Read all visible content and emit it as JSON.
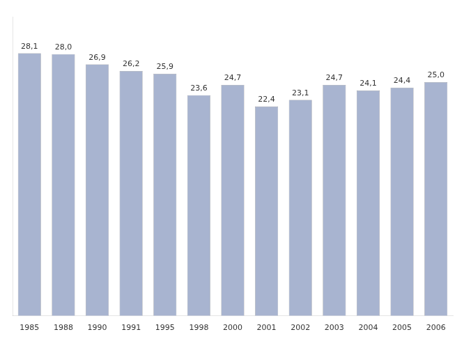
{
  "chart_data": {
    "type": "bar",
    "categories": [
      "1985",
      "1988",
      "1990",
      "1991",
      "1995",
      "1998",
      "2000",
      "2001",
      "2002",
      "2003",
      "2004",
      "2005",
      "2006"
    ],
    "values": [
      28.1,
      28.0,
      26.9,
      26.2,
      25.9,
      23.6,
      24.7,
      22.4,
      23.1,
      24.7,
      24.1,
      24.4,
      25.0
    ],
    "value_labels": [
      "28,1",
      "28,0",
      "26,9",
      "26,2",
      "25,9",
      "23,6",
      "24,7",
      "22,4",
      "23,1",
      "24,7",
      "24,1",
      "24,4",
      "25,0"
    ],
    "data_labels": true,
    "color": "#a8b4d0",
    "ylim": [
      0,
      32
    ],
    "grid": false,
    "tick_labels": "x"
  }
}
